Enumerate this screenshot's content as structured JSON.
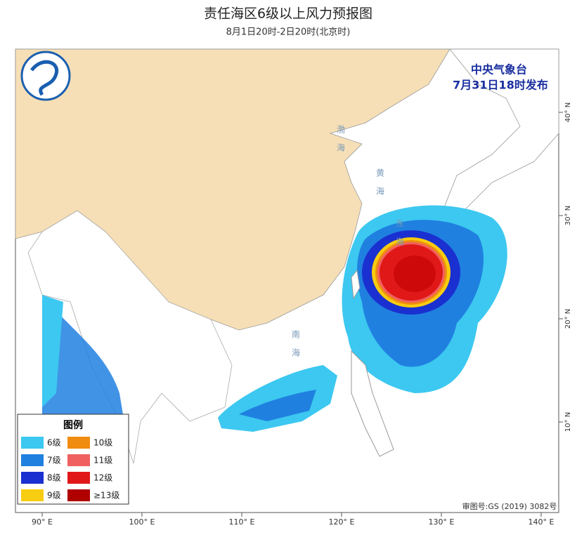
{
  "header": {
    "title": "责任海区6级以上风力预报图",
    "subtitle": "8月1日20时-2日20时(北京时)"
  },
  "issuer": {
    "name": "中央气象台",
    "time": "7月31日18时发布"
  },
  "sea_labels": [
    {
      "label": "渤海"
    },
    {
      "label": "黄海"
    },
    {
      "label": "东海"
    },
    {
      "label": "南海"
    }
  ],
  "lon_labels": [
    {
      "value": 90,
      "label": "90° E"
    },
    {
      "value": 100,
      "label": "100° E"
    },
    {
      "value": 110,
      "label": "110° E"
    },
    {
      "value": 120,
      "label": "120° E"
    },
    {
      "value": 130,
      "label": "130° E"
    },
    {
      "value": 140,
      "label": "140° E"
    }
  ],
  "lat_labels": [
    {
      "value": 40,
      "label": "40° N"
    },
    {
      "value": 30,
      "label": "30° N"
    },
    {
      "value": 20,
      "label": "20° N"
    },
    {
      "value": 10,
      "label": "10° N"
    }
  ],
  "legend": {
    "title": "图例",
    "items": [
      {
        "label": "6级",
        "color": "#3cc8f0"
      },
      {
        "label": "7级",
        "color": "#2080e0"
      },
      {
        "label": "8级",
        "color": "#1a30d0"
      },
      {
        "label": "9级",
        "color": "#f8cc10"
      },
      {
        "label": "10级",
        "color": "#f08c10"
      },
      {
        "label": "11级",
        "color": "#f06060"
      },
      {
        "label": "12级",
        "color": "#e01818"
      },
      {
        "label": "≥13级",
        "color": "#b00000"
      }
    ]
  },
  "footer": {
    "approval": "审图号:GS (2019) 3082号"
  }
}
